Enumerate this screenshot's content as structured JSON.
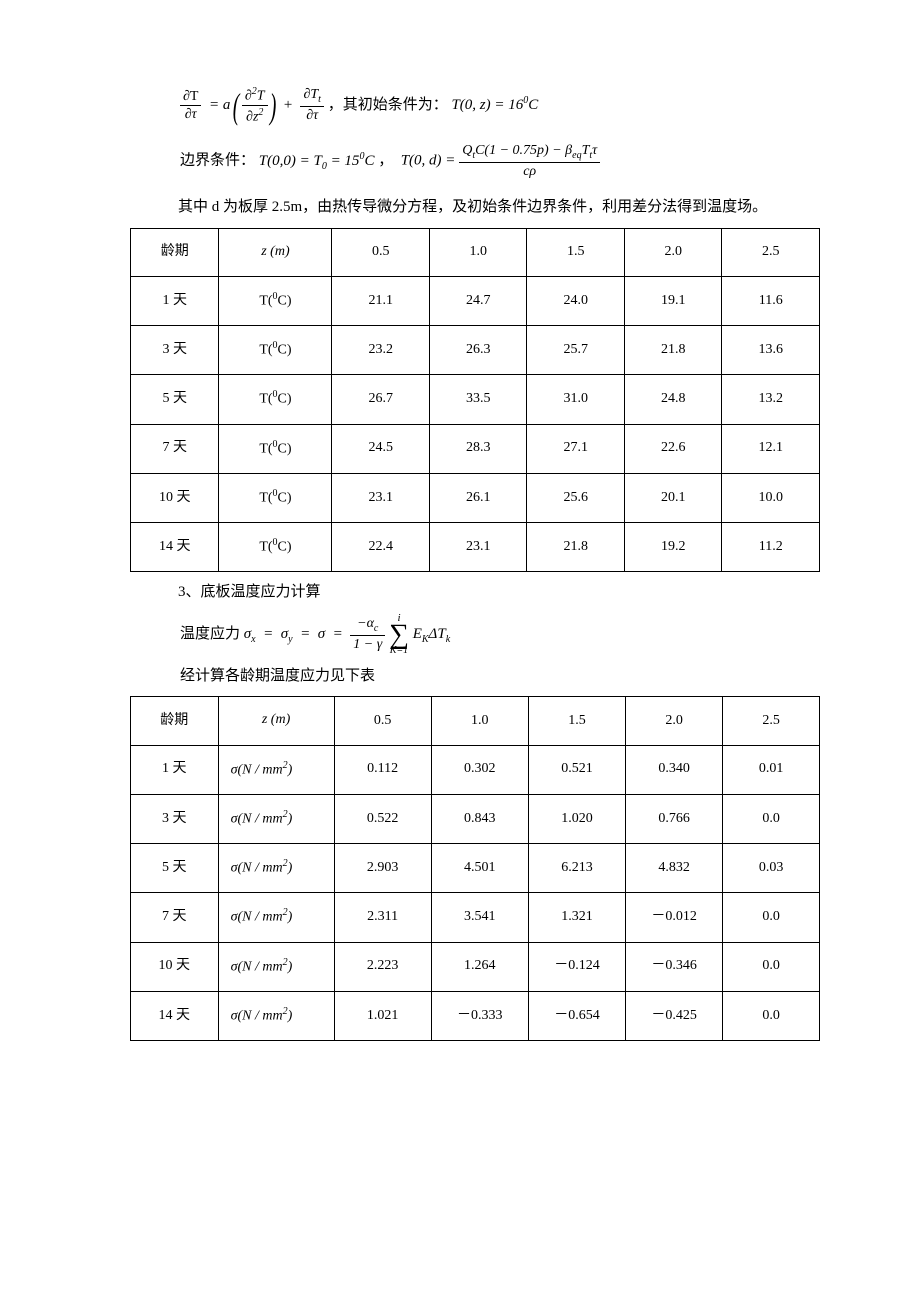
{
  "eq1_text_after": "，其初始条件为：",
  "eq1_rhs": "T(0, z) = 16",
  "eq1_deg": "0",
  "eq1_C": "C",
  "boundary_label": "边界条件：",
  "eq2a": "T(0,0) = T",
  "eq2a_sub": "0",
  "eq2a_tail": " = 15",
  "eq2a_deg": "0",
  "eq2a_C": "C",
  "eq2_sep": "，",
  "eq2b_lhs": "T(0, d) = ",
  "eq2b_num_a": "Q",
  "eq2b_num_a_sub": "t",
  "eq2b_num_b": "C(1 − 0.75p) − β",
  "eq2b_num_b_sub": "eq",
  "eq2b_num_c": "T",
  "eq2b_num_c_sub": "t",
  "eq2b_num_d": "τ",
  "eq2b_den": "cρ",
  "para_d": "其中 d 为板厚 2.5m，由热传导微分方程，及初始条件边界条件，利用差分法得到温度场。",
  "table1": {
    "header": [
      "龄期",
      "z (m)",
      "0.5",
      "1.0",
      "1.5",
      "2.0",
      "2.5"
    ],
    "unit_label_html": "T(<span class='sup'>0</span>C)",
    "rows": [
      {
        "age": "1 天",
        "vals": [
          "21.1",
          "24.7",
          "24.0",
          "19.1",
          "11.6"
        ]
      },
      {
        "age": "3 天",
        "vals": [
          "23.2",
          "26.3",
          "25.7",
          "21.8",
          "13.6"
        ]
      },
      {
        "age": "5 天",
        "vals": [
          "26.7",
          "33.5",
          "31.0",
          "24.8",
          "13.2"
        ]
      },
      {
        "age": "7 天",
        "vals": [
          "24.5",
          "28.3",
          "27.1",
          "22.6",
          "12.1"
        ]
      },
      {
        "age": "10 天",
        "vals": [
          "23.1",
          "26.1",
          "25.6",
          "20.1",
          "10.0"
        ]
      },
      {
        "age": "14 天",
        "vals": [
          "22.4",
          "23.1",
          "21.8",
          "19.2",
          "11.2"
        ]
      }
    ]
  },
  "section3_title": "3、底板温度应力计算",
  "stress_label": "温度应力",
  "stress_eq_lhs": "σ",
  "stress_eq_sub_x": "x",
  "stress_eq_sub_y": "y",
  "frac_num_a": "−α",
  "frac_num_a_sub": "c",
  "frac_den_a": "1 − γ",
  "sum_top": "i",
  "sum_bot": "K=1",
  "sum_tail_a": "E",
  "sum_tail_a_sub": "K",
  "sum_tail_b": "ΔT",
  "sum_tail_b_sub": "k",
  "table2_intro": "经计算各龄期温度应力见下表",
  "table2": {
    "header": [
      "龄期",
      "z (m)",
      "0.5",
      "1.0",
      "1.5",
      "2.0",
      "2.5"
    ],
    "unit_label_html": "σ(N / mm<span class='sup'>2</span>)",
    "rows": [
      {
        "age": "1 天",
        "vals": [
          "0.112",
          "0.302",
          "0.521",
          "0.340",
          "0.01"
        ]
      },
      {
        "age": "3 天",
        "vals": [
          "0.522",
          "0.843",
          "1.020",
          "0.766",
          "0.0"
        ]
      },
      {
        "age": "5 天",
        "vals": [
          "2.903",
          "4.501",
          "6.213",
          "4.832",
          "0.03"
        ]
      },
      {
        "age": "7 天",
        "vals": [
          "2.311",
          "3.541",
          "1.321",
          "－0.012",
          "0.0"
        ]
      },
      {
        "age": "10 天",
        "vals": [
          "2.223",
          "1.264",
          "－0.124",
          "－0.346",
          "0.0"
        ]
      },
      {
        "age": "14 天",
        "vals": [
          "1.021",
          "－0.333",
          "－0.654",
          "－0.425",
          "0.0"
        ]
      }
    ]
  }
}
